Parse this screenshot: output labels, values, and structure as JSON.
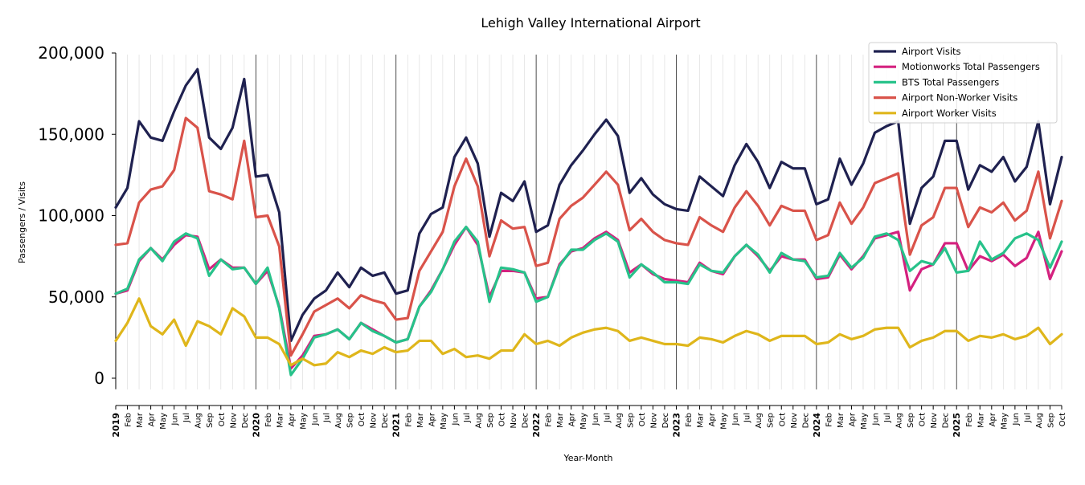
{
  "chart_data": {
    "type": "line",
    "title": "Lehigh Valley International Airport",
    "xlabel": "Year-Month",
    "ylabel": "Passengers / Visits",
    "ylim": [
      -6500,
      200000
    ],
    "yticks": [
      0,
      50000,
      100000,
      150000,
      200000
    ],
    "ytick_labels": [
      "0",
      "50,000",
      "100,000",
      "150,000",
      "200,000"
    ],
    "grid": "vertical, monthly light lines; dark lines at year starts",
    "legend_position": "top-right",
    "x": [
      "2019",
      "Feb",
      "Mar",
      "Apr",
      "May",
      "Jun",
      "Jul",
      "Aug",
      "Sep",
      "Oct",
      "Nov",
      "Dec",
      "2020",
      "Feb",
      "Mar",
      "Apr",
      "May",
      "Jun",
      "Jul",
      "Aug",
      "Sep",
      "Oct",
      "Nov",
      "Dec",
      "2021",
      "Feb",
      "Mar",
      "Apr",
      "May",
      "Jun",
      "Jul",
      "Aug",
      "Sep",
      "Oct",
      "Nov",
      "Dec",
      "2022",
      "Feb",
      "Mar",
      "Apr",
      "May",
      "Jun",
      "Jul",
      "Aug",
      "Sep",
      "Oct",
      "Nov",
      "Dec",
      "2023",
      "Feb",
      "Mar",
      "Apr",
      "May",
      "Jun",
      "Jul",
      "Aug",
      "Sep",
      "Oct",
      "Nov",
      "Dec",
      "2024",
      "Feb",
      "Mar",
      "Apr",
      "May",
      "Jun",
      "Jul",
      "Aug",
      "Sep",
      "Oct",
      "Nov",
      "Dec",
      "2025",
      "Feb",
      "Mar",
      "Apr",
      "May",
      "Jun",
      "Jul",
      "Aug",
      "Sep",
      "Oct"
    ],
    "series": [
      {
        "name": "Airport Visits",
        "color": "#1f2150",
        "values": [
          105000,
          117000,
          158000,
          148000,
          146000,
          164000,
          180000,
          190000,
          148000,
          141000,
          154000,
          184000,
          124000,
          125000,
          102000,
          23000,
          39000,
          49000,
          54000,
          65000,
          56000,
          68000,
          63000,
          65000,
          52000,
          54000,
          89000,
          101000,
          105000,
          136000,
          148000,
          132000,
          87000,
          114000,
          109000,
          121000,
          90000,
          94000,
          119000,
          131000,
          140000,
          150000,
          159000,
          149000,
          114000,
          123000,
          113000,
          107000,
          104000,
          103000,
          124000,
          118000,
          112000,
          131000,
          144000,
          133000,
          117000,
          133000,
          129000,
          129000,
          107000,
          110000,
          135000,
          119000,
          132000,
          151000,
          155000,
          158000,
          95000,
          117000,
          124000,
          146000,
          146000,
          116000,
          131000,
          127000,
          136000,
          121000,
          130000,
          158000,
          107000,
          136000
        ]
      },
      {
        "name": "Motionworks Total Passengers",
        "color": "#d4217f",
        "values": [
          52000,
          54000,
          72000,
          80000,
          73000,
          82000,
          88000,
          87000,
          67000,
          73000,
          68000,
          68000,
          58000,
          66000,
          44000,
          6000,
          14000,
          26000,
          27000,
          30000,
          24000,
          34000,
          30000,
          26000,
          22000,
          24000,
          44000,
          54000,
          67000,
          82000,
          93000,
          82000,
          50000,
          66000,
          66000,
          65000,
          49000,
          50000,
          70000,
          78000,
          80000,
          86000,
          90000,
          85000,
          65000,
          70000,
          64000,
          61000,
          60000,
          59000,
          71000,
          66000,
          64000,
          75000,
          82000,
          75000,
          66000,
          75000,
          73000,
          73000,
          61000,
          62000,
          76000,
          67000,
          75000,
          86000,
          88000,
          90000,
          54000,
          67000,
          70000,
          83000,
          83000,
          66000,
          75000,
          72000,
          76000,
          69000,
          74000,
          90000,
          61000,
          78000
        ]
      },
      {
        "name": "BTS Total Passengers",
        "color": "#27c28a",
        "values": [
          52000,
          55000,
          73000,
          80000,
          72000,
          84000,
          89000,
          86000,
          63000,
          73000,
          67000,
          68000,
          58000,
          68000,
          43000,
          2000,
          12000,
          25000,
          27000,
          30000,
          24000,
          34000,
          29000,
          26000,
          22000,
          24000,
          44000,
          53000,
          67000,
          84000,
          93000,
          84000,
          47000,
          68000,
          67000,
          65000,
          47000,
          50000,
          69000,
          79000,
          79000,
          85000,
          89000,
          84000,
          62000,
          70000,
          65000,
          59000,
          59000,
          58000,
          70000,
          66000,
          65000,
          75000,
          82000,
          76000,
          65000,
          77000,
          73000,
          72000,
          62000,
          63000,
          77000,
          68000,
          74000,
          87000,
          89000,
          85000,
          66000,
          72000,
          70000,
          80000,
          65000,
          66000,
          84000,
          73000,
          77000,
          86000,
          89000,
          85000,
          68000,
          84000
        ]
      },
      {
        "name": "Airport Non-Worker Visits",
        "color": "#d9534a",
        "values": [
          82000,
          83000,
          108000,
          116000,
          118000,
          128000,
          160000,
          154000,
          115000,
          113000,
          110000,
          146000,
          99000,
          100000,
          81000,
          14000,
          27000,
          41000,
          45000,
          49000,
          43000,
          51000,
          48000,
          46000,
          36000,
          37000,
          66000,
          78000,
          90000,
          118000,
          135000,
          118000,
          75000,
          97000,
          92000,
          93000,
          69000,
          71000,
          98000,
          106000,
          111000,
          119000,
          127000,
          119000,
          91000,
          98000,
          90000,
          85000,
          83000,
          82000,
          99000,
          94000,
          90000,
          105000,
          115000,
          106000,
          94000,
          106000,
          103000,
          103000,
          85000,
          88000,
          108000,
          95000,
          105000,
          120000,
          123000,
          126000,
          76000,
          94000,
          99000,
          117000,
          117000,
          93000,
          105000,
          102000,
          108000,
          97000,
          103000,
          127000,
          86000,
          109000
        ]
      },
      {
        "name": "Airport Worker Visits",
        "color": "#dfb61b",
        "values": [
          23000,
          34000,
          49000,
          32000,
          27000,
          36000,
          20000,
          35000,
          32000,
          27000,
          43000,
          38000,
          25000,
          25000,
          21000,
          8000,
          12000,
          8000,
          9000,
          16000,
          13000,
          17000,
          15000,
          19000,
          16000,
          17000,
          23000,
          23000,
          15000,
          18000,
          13000,
          14000,
          12000,
          17000,
          17000,
          27000,
          21000,
          23000,
          20000,
          25000,
          28000,
          30000,
          31000,
          29000,
          23000,
          25000,
          23000,
          21000,
          21000,
          20000,
          25000,
          24000,
          22000,
          26000,
          29000,
          27000,
          23000,
          26000,
          26000,
          26000,
          21000,
          22000,
          27000,
          24000,
          26000,
          30000,
          31000,
          31000,
          19000,
          23000,
          25000,
          29000,
          29000,
          23000,
          26000,
          25000,
          27000,
          24000,
          26000,
          31000,
          21000,
          27000
        ]
      }
    ]
  }
}
